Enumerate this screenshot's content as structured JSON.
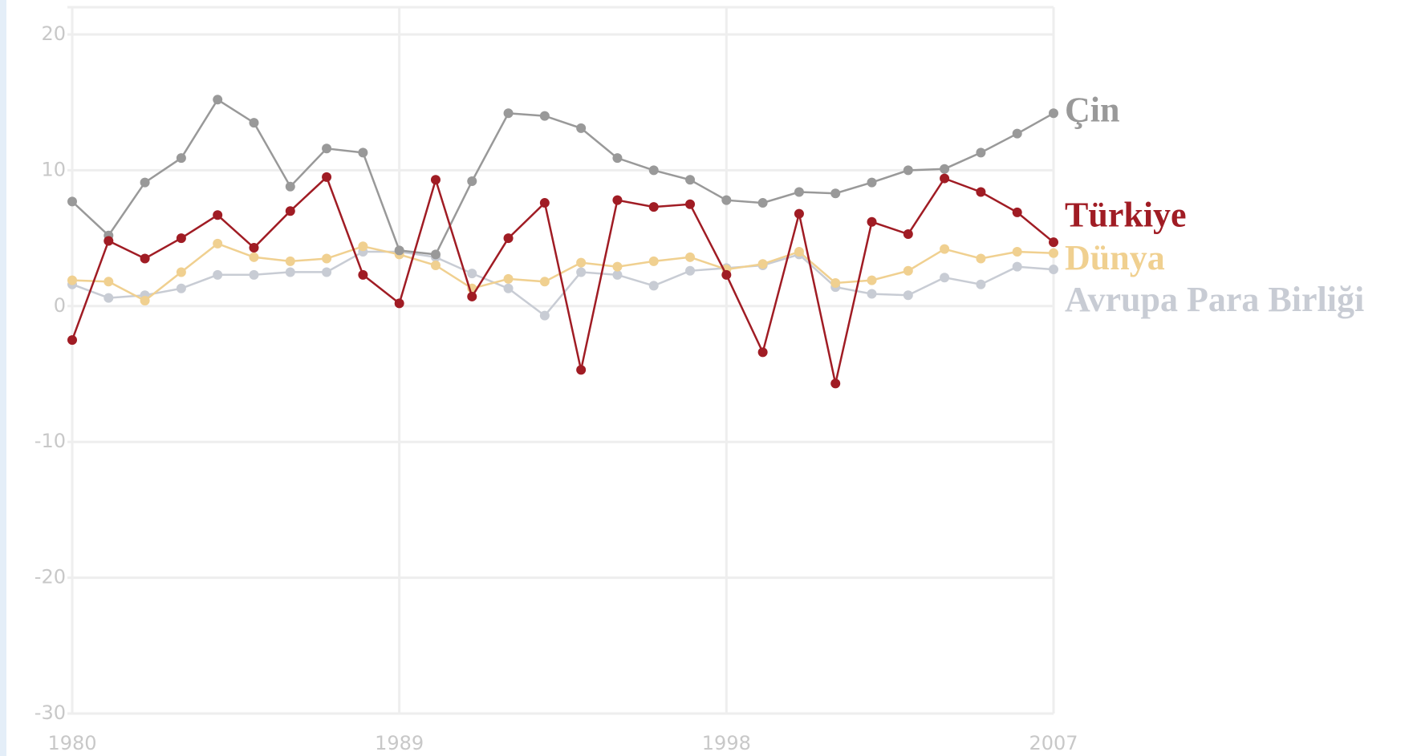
{
  "chart_data": {
    "type": "line",
    "x": [
      1980,
      1981,
      1982,
      1983,
      1984,
      1985,
      1986,
      1987,
      1988,
      1989,
      1990,
      1991,
      1992,
      1993,
      1994,
      1995,
      1996,
      1997,
      1998,
      1999,
      2000,
      2001,
      2002,
      2003,
      2004,
      2005,
      2006,
      2007
    ],
    "series": [
      {
        "name": "Çin",
        "color": "#999999",
        "values": [
          7.7,
          5.2,
          9.1,
          10.9,
          15.2,
          13.5,
          8.8,
          11.6,
          11.3,
          4.1,
          3.8,
          9.2,
          14.2,
          14.0,
          13.1,
          10.9,
          10.0,
          9.3,
          7.8,
          7.6,
          8.4,
          8.3,
          9.1,
          10.0,
          10.1,
          11.3,
          12.7,
          14.2
        ]
      },
      {
        "name": "Türkiye",
        "color": "#a01c24",
        "values": [
          -2.5,
          4.8,
          3.5,
          5.0,
          6.7,
          4.3,
          7.0,
          9.5,
          2.3,
          0.2,
          9.3,
          0.7,
          5.0,
          7.6,
          -4.7,
          7.8,
          7.3,
          7.5,
          2.3,
          -3.4,
          6.8,
          -5.7,
          6.2,
          5.3,
          9.4,
          8.4,
          6.9,
          4.7
        ]
      },
      {
        "name": "Dünya",
        "color": "#f0d090",
        "values": [
          1.9,
          1.8,
          0.4,
          2.5,
          4.6,
          3.6,
          3.3,
          3.5,
          4.4,
          3.8,
          3.0,
          1.3,
          2.0,
          1.8,
          3.2,
          2.9,
          3.3,
          3.6,
          2.7,
          3.1,
          4.0,
          1.7,
          1.9,
          2.6,
          4.2,
          3.5,
          4.0,
          3.9
        ]
      },
      {
        "name": "Avrupa Para Birliği",
        "color": "#c8ccd4",
        "values": [
          1.6,
          0.6,
          0.8,
          1.3,
          2.3,
          2.3,
          2.5,
          2.5,
          4.0,
          4.0,
          3.6,
          2.4,
          1.3,
          -0.7,
          2.5,
          2.3,
          1.5,
          2.6,
          2.8,
          3.0,
          3.8,
          1.4,
          0.9,
          0.8,
          2.1,
          1.6,
          2.9,
          2.7
        ]
      }
    ],
    "xlim": [
      1980,
      2007
    ],
    "xticks": [
      1980,
      1989,
      1998,
      2007
    ],
    "ylim": [
      -30,
      20
    ],
    "yticks": [
      -30,
      -20,
      -10,
      0,
      10,
      20
    ],
    "grid": true
  }
}
